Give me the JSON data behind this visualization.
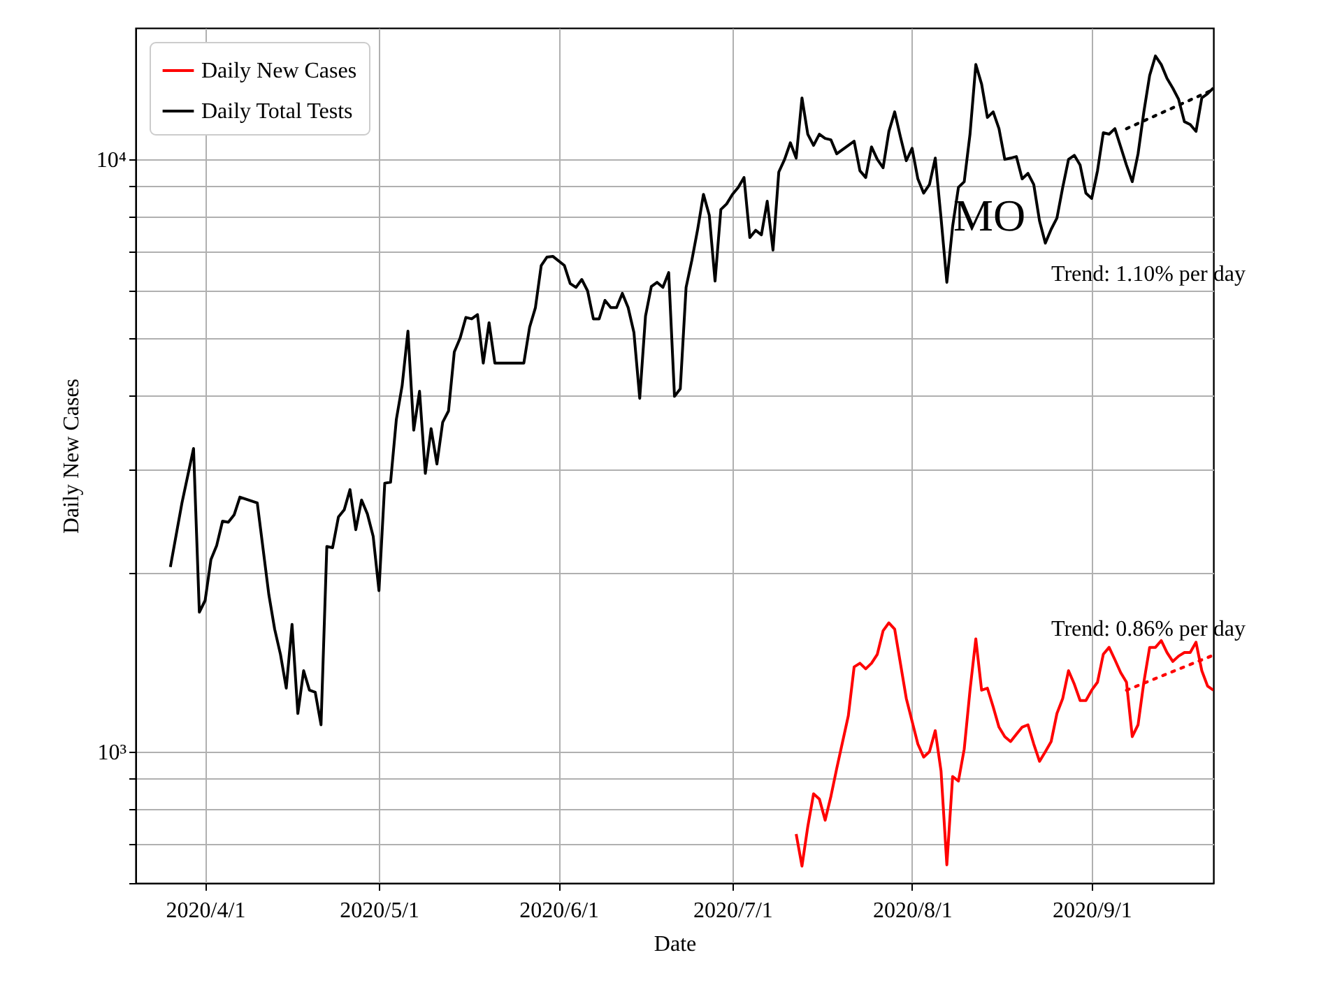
{
  "chart_data": {
    "type": "line",
    "xlabel": "Date",
    "ylabel": "Daily New Cases",
    "log": true,
    "grid": true,
    "legend": "top left",
    "xlim": [
      "2020-03-20",
      "2020-09-22"
    ],
    "xticks": [
      {
        "value": "2020-04-01",
        "label": "2020/4/1"
      },
      {
        "value": "2020-05-01",
        "label": "2020/5/1"
      },
      {
        "value": "2020-06-01",
        "label": "2020/6/1"
      },
      {
        "value": "2020-07-01",
        "label": "2020/7/1"
      },
      {
        "value": "2020-08-01",
        "label": "2020/8/1"
      },
      {
        "value": "2020-09-01",
        "label": "2020/9/1"
      }
    ],
    "ylim": [
      600,
      16670
    ],
    "yticks": [
      {
        "value": 600,
        "label": null
      },
      {
        "value": 700,
        "label": null
      },
      {
        "value": 800,
        "label": null
      },
      {
        "value": 900,
        "label": null
      },
      {
        "value": 1000,
        "label": "10³"
      },
      {
        "value": 2000,
        "label": null
      },
      {
        "value": 3000,
        "label": null
      },
      {
        "value": 4000,
        "label": null
      },
      {
        "value": 5000,
        "label": null
      },
      {
        "value": 6000,
        "label": null
      },
      {
        "value": 7000,
        "label": null
      },
      {
        "value": 8000,
        "label": null
      },
      {
        "value": 9000,
        "label": null
      },
      {
        "value": 10000,
        "label": "10⁴"
      }
    ],
    "series": [
      {
        "name": "Daily New Cases",
        "color": "#ff0000",
        "x": [
          "2020-07-12",
          "2020-07-13",
          "2020-07-14",
          "2020-07-15",
          "2020-07-16",
          "2020-07-17",
          "2020-07-18",
          "2020-07-19",
          "2020-07-21",
          "2020-07-22",
          "2020-07-23",
          "2020-07-24",
          "2020-07-25",
          "2020-07-26",
          "2020-07-27",
          "2020-07-28",
          "2020-07-29",
          "2020-07-31",
          "2020-08-02",
          "2020-08-03",
          "2020-08-04",
          "2020-08-05",
          "2020-08-06",
          "2020-08-07",
          "2020-08-08",
          "2020-08-09",
          "2020-08-10",
          "2020-08-11",
          "2020-08-12",
          "2020-08-13",
          "2020-08-14",
          "2020-08-15",
          "2020-08-16",
          "2020-08-17",
          "2020-08-18",
          "2020-08-19",
          "2020-08-20",
          "2020-08-21",
          "2020-08-22",
          "2020-08-23",
          "2020-08-24",
          "2020-08-25",
          "2020-08-26",
          "2020-08-27",
          "2020-08-28",
          "2020-08-29",
          "2020-08-30",
          "2020-08-31",
          "2020-09-01",
          "2020-09-02",
          "2020-09-03",
          "2020-09-04",
          "2020-09-05",
          "2020-09-06",
          "2020-09-07",
          "2020-09-08",
          "2020-09-09",
          "2020-09-10",
          "2020-09-11",
          "2020-09-12",
          "2020-09-13",
          "2020-09-14",
          "2020-09-15",
          "2020-09-16",
          "2020-09-17",
          "2020-09-18",
          "2020-09-19",
          "2020-09-20",
          "2020-09-21",
          "2020-09-22"
        ],
        "values": [
          726,
          641,
          747,
          849,
          832,
          766,
          841,
          937,
          1150,
          1390,
          1410,
          1380,
          1410,
          1460,
          1600,
          1650,
          1610,
          1230,
          1030,
          979,
          1000,
          1085,
          927,
          644,
          908,
          892,
          1010,
          1270,
          1550,
          1270,
          1280,
          1190,
          1100,
          1060,
          1040,
          1070,
          1100,
          1110,
          1030,
          963,
          1000,
          1040,
          1160,
          1230,
          1370,
          1300,
          1220,
          1220,
          1270,
          1310,
          1460,
          1500,
          1430,
          1360,
          1310,
          1060,
          1110,
          1310,
          1500,
          1500,
          1540,
          1470,
          1420,
          1450,
          1470,
          1470,
          1530,
          1370,
          1290,
          1270
        ]
      },
      {
        "name": "Daily Total Tests",
        "color": "#000000",
        "x": [
          "2020-03-26",
          "2020-03-28",
          "2020-03-30",
          "2020-03-31",
          "2020-04-01",
          "2020-04-02",
          "2020-04-03",
          "2020-04-04",
          "2020-04-05",
          "2020-04-06",
          "2020-04-07",
          "2020-04-10",
          "2020-04-12",
          "2020-04-13",
          "2020-04-14",
          "2020-04-15",
          "2020-04-16",
          "2020-04-17",
          "2020-04-18",
          "2020-04-19",
          "2020-04-20",
          "2020-04-21",
          "2020-04-22",
          "2020-04-23",
          "2020-04-24",
          "2020-04-25",
          "2020-04-26",
          "2020-04-27",
          "2020-04-28",
          "2020-04-29",
          "2020-04-30",
          "2020-05-01",
          "2020-05-02",
          "2020-05-03",
          "2020-05-04",
          "2020-05-05",
          "2020-05-06",
          "2020-05-07",
          "2020-05-08",
          "2020-05-09",
          "2020-05-10",
          "2020-05-11",
          "2020-05-12",
          "2020-05-13",
          "2020-05-14",
          "2020-05-15",
          "2020-05-16",
          "2020-05-17",
          "2020-05-18",
          "2020-05-19",
          "2020-05-20",
          "2020-05-21",
          "2020-05-26",
          "2020-05-27",
          "2020-05-28",
          "2020-05-29",
          "2020-05-30",
          "2020-05-31",
          "2020-06-02",
          "2020-06-03",
          "2020-06-04",
          "2020-06-05",
          "2020-06-06",
          "2020-06-07",
          "2020-06-08",
          "2020-06-09",
          "2020-06-10",
          "2020-06-11",
          "2020-06-12",
          "2020-06-13",
          "2020-06-14",
          "2020-06-15",
          "2020-06-16",
          "2020-06-17",
          "2020-06-18",
          "2020-06-19",
          "2020-06-20",
          "2020-06-21",
          "2020-06-22",
          "2020-06-23",
          "2020-06-24",
          "2020-06-25",
          "2020-06-26",
          "2020-06-27",
          "2020-06-28",
          "2020-06-29",
          "2020-06-30",
          "2020-07-01",
          "2020-07-02",
          "2020-07-03",
          "2020-07-04",
          "2020-07-05",
          "2020-07-06",
          "2020-07-07",
          "2020-07-08",
          "2020-07-09",
          "2020-07-10",
          "2020-07-11",
          "2020-07-12",
          "2020-07-13",
          "2020-07-14",
          "2020-07-15",
          "2020-07-16",
          "2020-07-17",
          "2020-07-18",
          "2020-07-19",
          "2020-07-20",
          "2020-07-22",
          "2020-07-23",
          "2020-07-24",
          "2020-07-25",
          "2020-07-26",
          "2020-07-27",
          "2020-07-28",
          "2020-07-29",
          "2020-07-30",
          "2020-07-31",
          "2020-08-01",
          "2020-08-02",
          "2020-08-03",
          "2020-08-04",
          "2020-08-05",
          "2020-08-06",
          "2020-08-07",
          "2020-08-08",
          "2020-08-09",
          "2020-08-10",
          "2020-08-11",
          "2020-08-12",
          "2020-08-13",
          "2020-08-14",
          "2020-08-15",
          "2020-08-16",
          "2020-08-17",
          "2020-08-18",
          "2020-08-19",
          "2020-08-20",
          "2020-08-21",
          "2020-08-22",
          "2020-08-23",
          "2020-08-24",
          "2020-08-25",
          "2020-08-26",
          "2020-08-27",
          "2020-08-28",
          "2020-08-29",
          "2020-08-30",
          "2020-08-31",
          "2020-09-01",
          "2020-09-02",
          "2020-09-03",
          "2020-09-04",
          "2020-09-05",
          "2020-09-06",
          "2020-09-07",
          "2020-09-08",
          "2020-09-09",
          "2020-09-10",
          "2020-09-11",
          "2020-09-12",
          "2020-09-13",
          "2020-09-14",
          "2020-09-15",
          "2020-09-16",
          "2020-09-17",
          "2020-09-18",
          "2020-09-19",
          "2020-09-20",
          "2020-09-21",
          "2020-09-22"
        ],
        "values": [
          2050,
          2630,
          3250,
          1720,
          1800,
          2110,
          2230,
          2450,
          2440,
          2510,
          2690,
          2630,
          1840,
          1610,
          1460,
          1280,
          1640,
          1160,
          1370,
          1270,
          1260,
          1110,
          2220,
          2210,
          2490,
          2560,
          2770,
          2370,
          2660,
          2520,
          2310,
          1870,
          2840,
          2850,
          3640,
          4150,
          5130,
          3490,
          4060,
          2950,
          3510,
          3060,
          3600,
          3760,
          4730,
          4990,
          5410,
          5380,
          5470,
          4530,
          5300,
          4530,
          4530,
          5210,
          5620,
          6620,
          6840,
          6860,
          6620,
          6170,
          6080,
          6270,
          6000,
          5380,
          5380,
          5780,
          5620,
          5620,
          5940,
          5620,
          5100,
          3950,
          5440,
          6100,
          6200,
          6080,
          6440,
          3980,
          4100,
          6080,
          6760,
          7620,
          8730,
          8050,
          6230,
          8230,
          8410,
          8730,
          8970,
          9320,
          7380,
          7590,
          7460,
          8500,
          7030,
          9520,
          10000,
          10670,
          10050,
          12700,
          11030,
          10560,
          11030,
          10850,
          10790,
          10220,
          10390,
          10730,
          9570,
          9320,
          10500,
          10000,
          9680,
          11150,
          12030,
          10910,
          9950,
          10440,
          9270,
          8770,
          9070,
          10050,
          7960,
          6200,
          7710,
          8970,
          9170,
          11030,
          14460,
          13400,
          11770,
          12030,
          11270,
          10000,
          10050,
          10110,
          9270,
          9470,
          9070,
          7870,
          7220,
          7620,
          7960,
          8970,
          10000,
          10160,
          9780,
          8770,
          8590,
          9570,
          11090,
          11030,
          11270,
          10500,
          9780,
          9170,
          10220,
          12030,
          13860,
          14950,
          14460,
          13700,
          13190,
          12630,
          11580,
          11450,
          11150,
          12700,
          12910,
          13200
        ]
      },
      {
        "type": "line",
        "color": "#ff0000",
        "line_style": "dotted",
        "x": [
          "2020-09-07",
          "2020-09-22"
        ],
        "values": [
          1270,
          1455
        ]
      },
      {
        "type": "line",
        "color": "#000000",
        "line_style": "dotted",
        "x": [
          "2020-09-07",
          "2020-09-22"
        ],
        "values": [
          11270,
          13120
        ]
      }
    ],
    "annotations": [
      "MO",
      "Trend: 1.10% per day",
      "Trend: 0.86% per day"
    ]
  }
}
